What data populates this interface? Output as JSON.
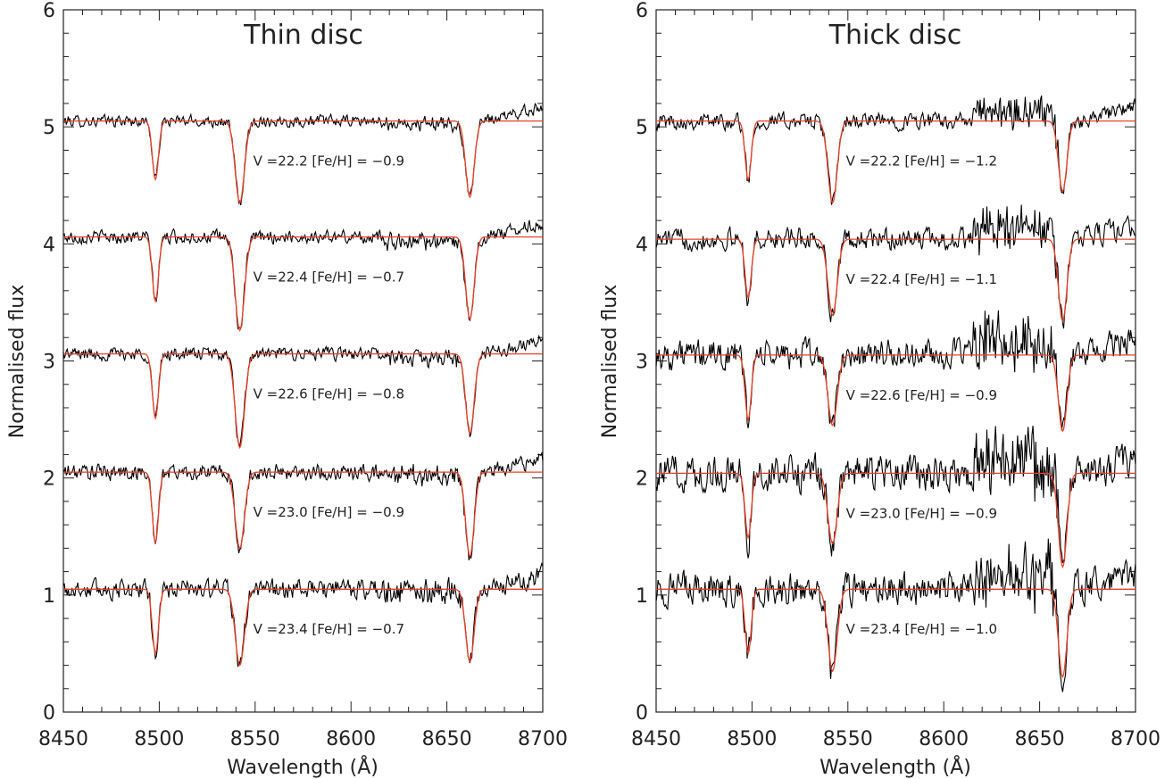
{
  "chart_data": [
    {
      "type": "line",
      "title": "Thin disc",
      "xlabel": "Wavelength (Å)",
      "ylabel": "Normalised flux",
      "xlim": [
        8450,
        8700
      ],
      "ylim": [
        0,
        6
      ],
      "x_ticks": [
        "8450",
        "8500",
        "8550",
        "8600",
        "8650",
        "8700"
      ],
      "y_ticks": [
        "0",
        "1",
        "2",
        "3",
        "4",
        "5",
        "6"
      ],
      "grid": false,
      "colors": {
        "observed": "#000000",
        "model": "#e8402a"
      },
      "series": [
        {
          "continuum": 5.05,
          "label": "V =22.2   [Fe/H] = −0.9",
          "depths": [
            0.5,
            0.7,
            0.65
          ],
          "noise": 0.07
        },
        {
          "continuum": 4.06,
          "label": "V =22.4   [Fe/H] = −0.7",
          "depths": [
            0.55,
            0.8,
            0.7
          ],
          "noise": 0.08
        },
        {
          "continuum": 3.06,
          "label": "V =22.6   [Fe/H] = −0.8",
          "depths": [
            0.55,
            0.8,
            0.68
          ],
          "noise": 0.08
        },
        {
          "continuum": 2.05,
          "label": "V =23.0   [Fe/H] = −0.9",
          "depths": [
            0.6,
            0.65,
            0.72
          ],
          "noise": 0.1
        },
        {
          "continuum": 1.05,
          "label": "V =23.4   [Fe/H] = −0.7",
          "depths": [
            0.55,
            0.65,
            0.62
          ],
          "noise": 0.12
        }
      ]
    },
    {
      "type": "line",
      "title": "Thick disc",
      "xlabel": "Wavelength (Å)",
      "ylabel": "Normalised flux",
      "xlim": [
        8450,
        8700
      ],
      "ylim": [
        0,
        6
      ],
      "x_ticks": [
        "8450",
        "8500",
        "8550",
        "8600",
        "8650",
        "8700"
      ],
      "y_ticks": [
        "0",
        "1",
        "2",
        "3",
        "4",
        "5",
        "6"
      ],
      "grid": false,
      "colors": {
        "observed": "#000000",
        "model": "#e8402a"
      },
      "series": [
        {
          "continuum": 5.05,
          "label": "V =22.2   [Fe/H] = −1.2",
          "depths": [
            0.5,
            0.7,
            0.6
          ],
          "noise": 0.1
        },
        {
          "continuum": 4.04,
          "label": "V =22.4   [Fe/H] = −1.1",
          "depths": [
            0.5,
            0.65,
            0.7
          ],
          "noise": 0.13
        },
        {
          "continuum": 3.05,
          "label": "V =22.6   [Fe/H] = −0.9",
          "depths": [
            0.55,
            0.6,
            0.65
          ],
          "noise": 0.18
        },
        {
          "continuum": 2.04,
          "label": "V =23.0   [Fe/H] = −0.9",
          "depths": [
            0.55,
            0.6,
            0.8
          ],
          "noise": 0.22
        },
        {
          "continuum": 1.05,
          "label": "V =23.4   [Fe/H] = −1.0",
          "depths": [
            0.55,
            0.7,
            0.75
          ],
          "noise": 0.2
        }
      ],
      "line_centres": [
        8498,
        8542,
        8662
      ]
    }
  ]
}
